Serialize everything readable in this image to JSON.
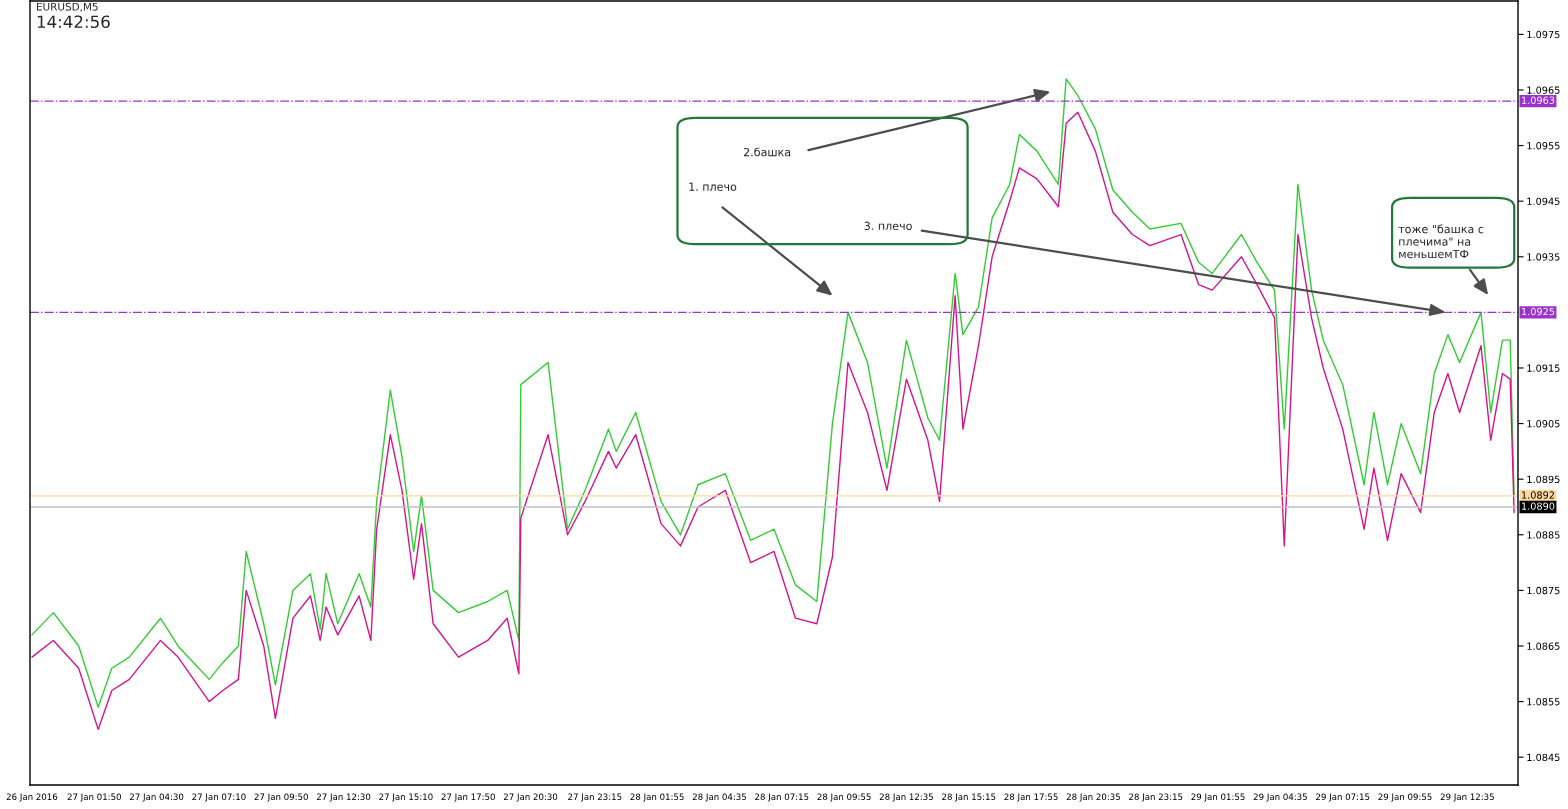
{
  "chart_data": {
    "type": "line",
    "title": "EURUSD,M5",
    "subtitle": "14:42:56",
    "xlim": [
      "2016-01-26T23:05",
      "2016-01-29T14:45"
    ],
    "ylim": [
      1.084,
      1.0981
    ],
    "xticks": [
      {
        "value": "2016-01-26T23:10",
        "label": "26 Jan 2016"
      },
      {
        "value": "2016-01-27T01:50",
        "label": "27 Jan 01:50"
      },
      {
        "value": "2016-01-27T04:30",
        "label": "27 Jan 04:30"
      },
      {
        "value": "2016-01-27T07:10",
        "label": "27 Jan 07:10"
      },
      {
        "value": "2016-01-27T09:50",
        "label": "27 Jan 09:50"
      },
      {
        "value": "2016-01-27T12:30",
        "label": "27 Jan 12:30"
      },
      {
        "value": "2016-01-27T15:10",
        "label": "27 Jan 15:10"
      },
      {
        "value": "2016-01-27T17:50",
        "label": "27 Jan 17:50"
      },
      {
        "value": "2016-01-27T20:30",
        "label": "27 Jan 20:30"
      },
      {
        "value": "2016-01-27T23:15",
        "label": "27 Jan 23:15"
      },
      {
        "value": "2016-01-28T01:55",
        "label": "28 Jan 01:55"
      },
      {
        "value": "2016-01-28T04:35",
        "label": "28 Jan 04:35"
      },
      {
        "value": "2016-01-28T07:15",
        "label": "28 Jan 07:15"
      },
      {
        "value": "2016-01-28T09:55",
        "label": "28 Jan 09:55"
      },
      {
        "value": "2016-01-28T12:35",
        "label": "28 Jan 12:35"
      },
      {
        "value": "2016-01-28T15:15",
        "label": "28 Jan 15:15"
      },
      {
        "value": "2016-01-28T17:55",
        "label": "28 Jan 17:55"
      },
      {
        "value": "2016-01-28T20:35",
        "label": "28 Jan 20:35"
      },
      {
        "value": "2016-01-28T23:15",
        "label": "28 Jan 23:15"
      },
      {
        "value": "2016-01-29T01:55",
        "label": "29 Jan 01:55"
      },
      {
        "value": "2016-01-29T04:35",
        "label": "29 Jan 04:35"
      },
      {
        "value": "2016-01-29T07:15",
        "label": "29 Jan 07:15"
      },
      {
        "value": "2016-01-29T09:55",
        "label": "29 Jan 09:55"
      },
      {
        "value": "2016-01-29T12:35",
        "label": "29 Jan 12:35"
      }
    ],
    "yticks": [
      1.0845,
      1.0855,
      1.0865,
      1.0875,
      1.0885,
      1.0895,
      1.0905,
      1.0915,
      1.0935,
      1.0945,
      1.0955,
      1.0965,
      1.0975
    ],
    "x": [
      "2016-01-26T23:10",
      "2016-01-27T00:05",
      "2016-01-27T01:10",
      "2016-01-27T02:00",
      "2016-01-27T02:35",
      "2016-01-27T03:20",
      "2016-01-27T04:40",
      "2016-01-27T05:25",
      "2016-01-27T06:05",
      "2016-01-27T06:45",
      "2016-01-27T07:20",
      "2016-01-27T08:00",
      "2016-01-27T08:20",
      "2016-01-27T09:05",
      "2016-01-27T09:35",
      "2016-01-27T10:20",
      "2016-01-27T11:05",
      "2016-01-27T11:30",
      "2016-01-27T11:45",
      "2016-01-27T12:15",
      "2016-01-27T13:10",
      "2016-01-27T13:40",
      "2016-01-27T13:55",
      "2016-01-27T14:30",
      "2016-01-27T15:00",
      "2016-01-27T15:30",
      "2016-01-27T15:50",
      "2016-01-27T16:20",
      "2016-01-27T17:25",
      "2016-01-27T18:40",
      "2016-01-27T19:30",
      "2016-01-27T20:00",
      "2016-01-27T20:05",
      "2016-01-27T21:15",
      "2016-01-27T22:05",
      "2016-01-27T22:50",
      "2016-01-27T23:50",
      "2016-01-28T00:10",
      "2016-01-28T01:00",
      "2016-01-28T02:05",
      "2016-01-28T02:55",
      "2016-01-28T03:40",
      "2016-01-28T04:50",
      "2016-01-28T05:55",
      "2016-01-28T06:55",
      "2016-01-28T07:50",
      "2016-01-28T08:45",
      "2016-01-28T09:25",
      "2016-01-28T10:05",
      "2016-01-28T10:55",
      "2016-01-28T11:45",
      "2016-01-28T12:35",
      "2016-01-28T13:30",
      "2016-01-28T14:00",
      "2016-01-28T14:40",
      "2016-01-28T15:00",
      "2016-01-28T15:40",
      "2016-01-28T16:15",
      "2016-01-28T17:00",
      "2016-01-28T17:25",
      "2016-01-28T18:10",
      "2016-01-28T19:05",
      "2016-01-28T19:25",
      "2016-01-28T19:55",
      "2016-01-28T20:40",
      "2016-01-28T21:25",
      "2016-01-28T22:15",
      "2016-01-28T23:00",
      "2016-01-29T00:20",
      "2016-01-29T01:05",
      "2016-01-29T01:40",
      "2016-01-29T02:55",
      "2016-01-29T03:35",
      "2016-01-29T04:20",
      "2016-01-29T04:45",
      "2016-01-29T05:20",
      "2016-01-29T05:55",
      "2016-01-29T06:25",
      "2016-01-29T07:15",
      "2016-01-29T08:10",
      "2016-01-29T08:35",
      "2016-01-29T09:10",
      "2016-01-29T09:45",
      "2016-01-29T10:35",
      "2016-01-29T11:10",
      "2016-01-29T11:45",
      "2016-01-29T12:15",
      "2016-01-29T13:10",
      "2016-01-29T13:35",
      "2016-01-29T14:05",
      "2016-01-29T14:25",
      "2016-01-29T14:35"
    ],
    "series": [
      {
        "color": "#33cc33",
        "values": [
          1.0867,
          1.0871,
          1.0865,
          1.0854,
          1.0861,
          1.0863,
          1.087,
          1.0865,
          1.0862,
          1.0859,
          1.0862,
          1.0865,
          1.0882,
          1.0869,
          1.0858,
          1.0875,
          1.0878,
          1.0868,
          1.0878,
          1.0869,
          1.0878,
          1.0872,
          1.0891,
          1.0911,
          1.0899,
          1.0882,
          1.0892,
          1.0875,
          1.0871,
          1.0873,
          1.0875,
          1.0866,
          1.0912,
          1.0916,
          1.0886,
          1.0893,
          1.0904,
          1.09,
          1.0907,
          1.0891,
          1.0885,
          1.0894,
          1.0896,
          1.0884,
          1.0886,
          1.0876,
          1.0873,
          1.0905,
          1.0925,
          1.0916,
          1.0897,
          1.092,
          1.0906,
          1.0902,
          1.0932,
          1.0921,
          1.0926,
          1.0942,
          1.0948,
          1.0957,
          1.0954,
          1.0948,
          1.0967,
          1.0964,
          1.0958,
          1.0947,
          1.0943,
          1.094,
          1.0941,
          1.0934,
          1.0932,
          1.0939,
          1.0934,
          1.0929,
          1.0904,
          1.0948,
          1.0929,
          1.092,
          1.0912,
          1.0894,
          1.0907,
          1.0894,
          1.0905,
          1.0896,
          1.0914,
          1.0921,
          1.0916,
          1.0925,
          1.0907,
          1.092,
          1.092,
          1.0892
        ]
      },
      {
        "color": "#d4148c",
        "values": [
          1.0863,
          1.0866,
          1.0861,
          1.085,
          1.0857,
          1.0859,
          1.0866,
          1.0863,
          1.0859,
          1.0855,
          1.0857,
          1.0859,
          1.0875,
          1.0865,
          1.0852,
          1.087,
          1.0874,
          1.0866,
          1.0872,
          1.0867,
          1.0874,
          1.0866,
          1.0886,
          1.0903,
          1.0893,
          1.0877,
          1.0887,
          1.0869,
          1.0863,
          1.0866,
          1.087,
          1.086,
          1.0888,
          1.0903,
          1.0885,
          1.0891,
          1.09,
          1.0897,
          1.0903,
          1.0887,
          1.0883,
          1.089,
          1.0893,
          1.088,
          1.0882,
          1.087,
          1.0869,
          1.0881,
          1.0916,
          1.0907,
          1.0893,
          1.0913,
          1.0902,
          1.0891,
          1.0928,
          1.0904,
          1.0919,
          1.0935,
          1.0945,
          1.0951,
          1.0949,
          1.0944,
          1.0959,
          1.0961,
          1.0954,
          1.0943,
          1.0939,
          1.0937,
          1.0939,
          1.093,
          1.0929,
          1.0935,
          1.093,
          1.0924,
          1.0883,
          1.0939,
          1.0924,
          1.0915,
          1.0904,
          1.0886,
          1.0897,
          1.0884,
          1.0896,
          1.0889,
          1.0907,
          1.0914,
          1.0907,
          1.0919,
          1.0902,
          1.0914,
          1.0913,
          1.0889
        ]
      }
    ],
    "ref_lines": [
      {
        "axis": "y",
        "value": 1.0963,
        "label": "1.0963",
        "color": "#9933cc",
        "line_style": "dashdot"
      },
      {
        "axis": "y",
        "value": 1.0925,
        "label": "1.0925",
        "color": "#9933cc",
        "line_style": "dashdot"
      },
      {
        "axis": "y",
        "value": 1.0892,
        "label": "1.0892",
        "color": "#ffd8a0",
        "line_style": "solid"
      },
      {
        "axis": "y",
        "value": 1.089,
        "label": "1.0890",
        "color": "#c0c0c0",
        "line_style": "solid"
      }
    ],
    "annotations": [
      "1. плечо",
      "2.башка",
      {
        "text": "3. плечо",
        "x": "2016-01-29T11:40",
        "y": 1.0925
      },
      "тоже \"башка с\nплечима\" на\nменьшемТФ"
    ],
    "grid": false
  }
}
